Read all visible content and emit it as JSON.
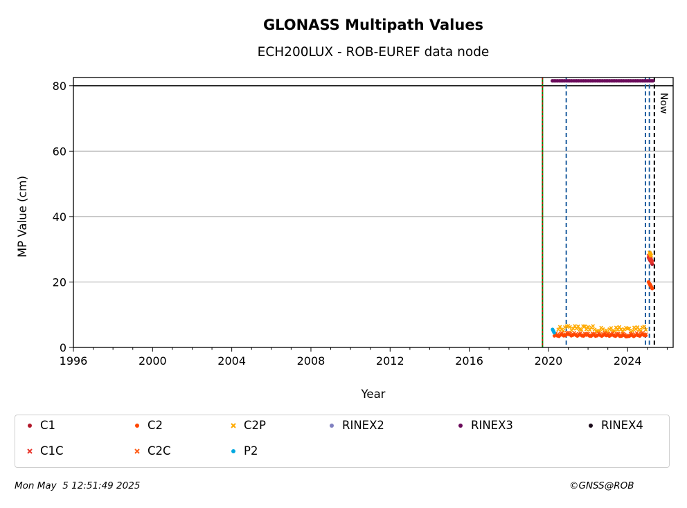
{
  "chart_data": {
    "type": "scatter",
    "title": "GLONASS Multipath Values",
    "subtitle": "ECH200LUX - ROB-EUREF data node",
    "xlabel": "Year",
    "ylabel": "MP Value (cm)",
    "xlim": [
      1996,
      2026.3
    ],
    "ylim": [
      0,
      82.5
    ],
    "xticks": [
      "1996",
      "2000",
      "2004",
      "2008",
      "2012",
      "2016",
      "2020",
      "2024"
    ],
    "yticks": [
      "0",
      "20",
      "40",
      "60",
      "80"
    ],
    "grid": "horizontal",
    "legend_placement": "below",
    "reference_lines": {
      "horizontal_black": 80,
      "green_red_dashed": 2019.7,
      "blue_dashed": [
        2020.9,
        2024.9,
        2025.1
      ],
      "black_dashed_now": 2025.35,
      "now_label": "Now"
    },
    "series": [
      {
        "name": "C1",
        "marker": "dot",
        "color": "#b2182b",
        "x": [
          2025.1,
          2025.2
        ],
        "y": [
          27,
          26
        ]
      },
      {
        "name": "C2",
        "marker": "dot",
        "color": "#ff4500",
        "x": [
          2020.3,
          2021,
          2022,
          2023,
          2024,
          2025,
          2025.1,
          2025.2
        ],
        "y": [
          3.5,
          3.8,
          3.6,
          3.7,
          3.5,
          3.8,
          19.5,
          18.5
        ]
      },
      {
        "name": "C2P",
        "marker": "x",
        "color": "#ffaa00",
        "x": [
          2020.5,
          2021,
          2021.5,
          2022,
          2022.5,
          2023,
          2023.5,
          2024,
          2024.5,
          2025,
          2025.15
        ],
        "y": [
          5.5,
          6,
          5.8,
          6.2,
          5.5,
          5.2,
          5.6,
          5.3,
          5.5,
          6,
          28.5
        ]
      },
      {
        "name": "RINEX2",
        "marker": "dot",
        "color": "#8080c0",
        "x": [],
        "y": []
      },
      {
        "name": "RINEX3",
        "marker": "dot",
        "color": "#6a0a5a",
        "x": [
          2020.2,
          2025.3
        ],
        "y": [
          81.5,
          81.5
        ]
      },
      {
        "name": "RINEX4",
        "marker": "dot",
        "color": "#1a0a1a",
        "x": [],
        "y": []
      },
      {
        "name": "C1C",
        "marker": "x",
        "color": "#e8342a",
        "x": [
          2025.1,
          2025.2
        ],
        "y": [
          27.5,
          26.5
        ]
      },
      {
        "name": "C2C",
        "marker": "x",
        "color": "#ff5a14",
        "x": [
          2020.3,
          2021,
          2022,
          2023,
          2024,
          2025
        ],
        "y": [
          4,
          4.2,
          3.9,
          4.1,
          3.8,
          4.3
        ]
      },
      {
        "name": "P2",
        "marker": "dot",
        "color": "#00a8e0",
        "x": [
          2020.25
        ],
        "y": [
          5
        ]
      }
    ]
  },
  "legend": [
    {
      "label": "C1",
      "marker": "dot",
      "color": "#b2182b"
    },
    {
      "label": "C2",
      "marker": "dot",
      "color": "#ff4500"
    },
    {
      "label": "C2P",
      "marker": "x",
      "color": "#ffaa00"
    },
    {
      "label": "RINEX2",
      "marker": "dot",
      "color": "#8080c0"
    },
    {
      "label": "RINEX3",
      "marker": "dot",
      "color": "#6a0a5a"
    },
    {
      "label": "RINEX4",
      "marker": "dot",
      "color": "#1a0a1a"
    },
    {
      "label": "C1C",
      "marker": "x",
      "color": "#e8342a"
    },
    {
      "label": "C2C",
      "marker": "x",
      "color": "#ff5a14"
    },
    {
      "label": "P2",
      "marker": "dot",
      "color": "#00a8e0"
    }
  ],
  "footer": {
    "timestamp": "Mon May  5 12:51:49 2025",
    "credit": "©GNSS@ROB"
  }
}
